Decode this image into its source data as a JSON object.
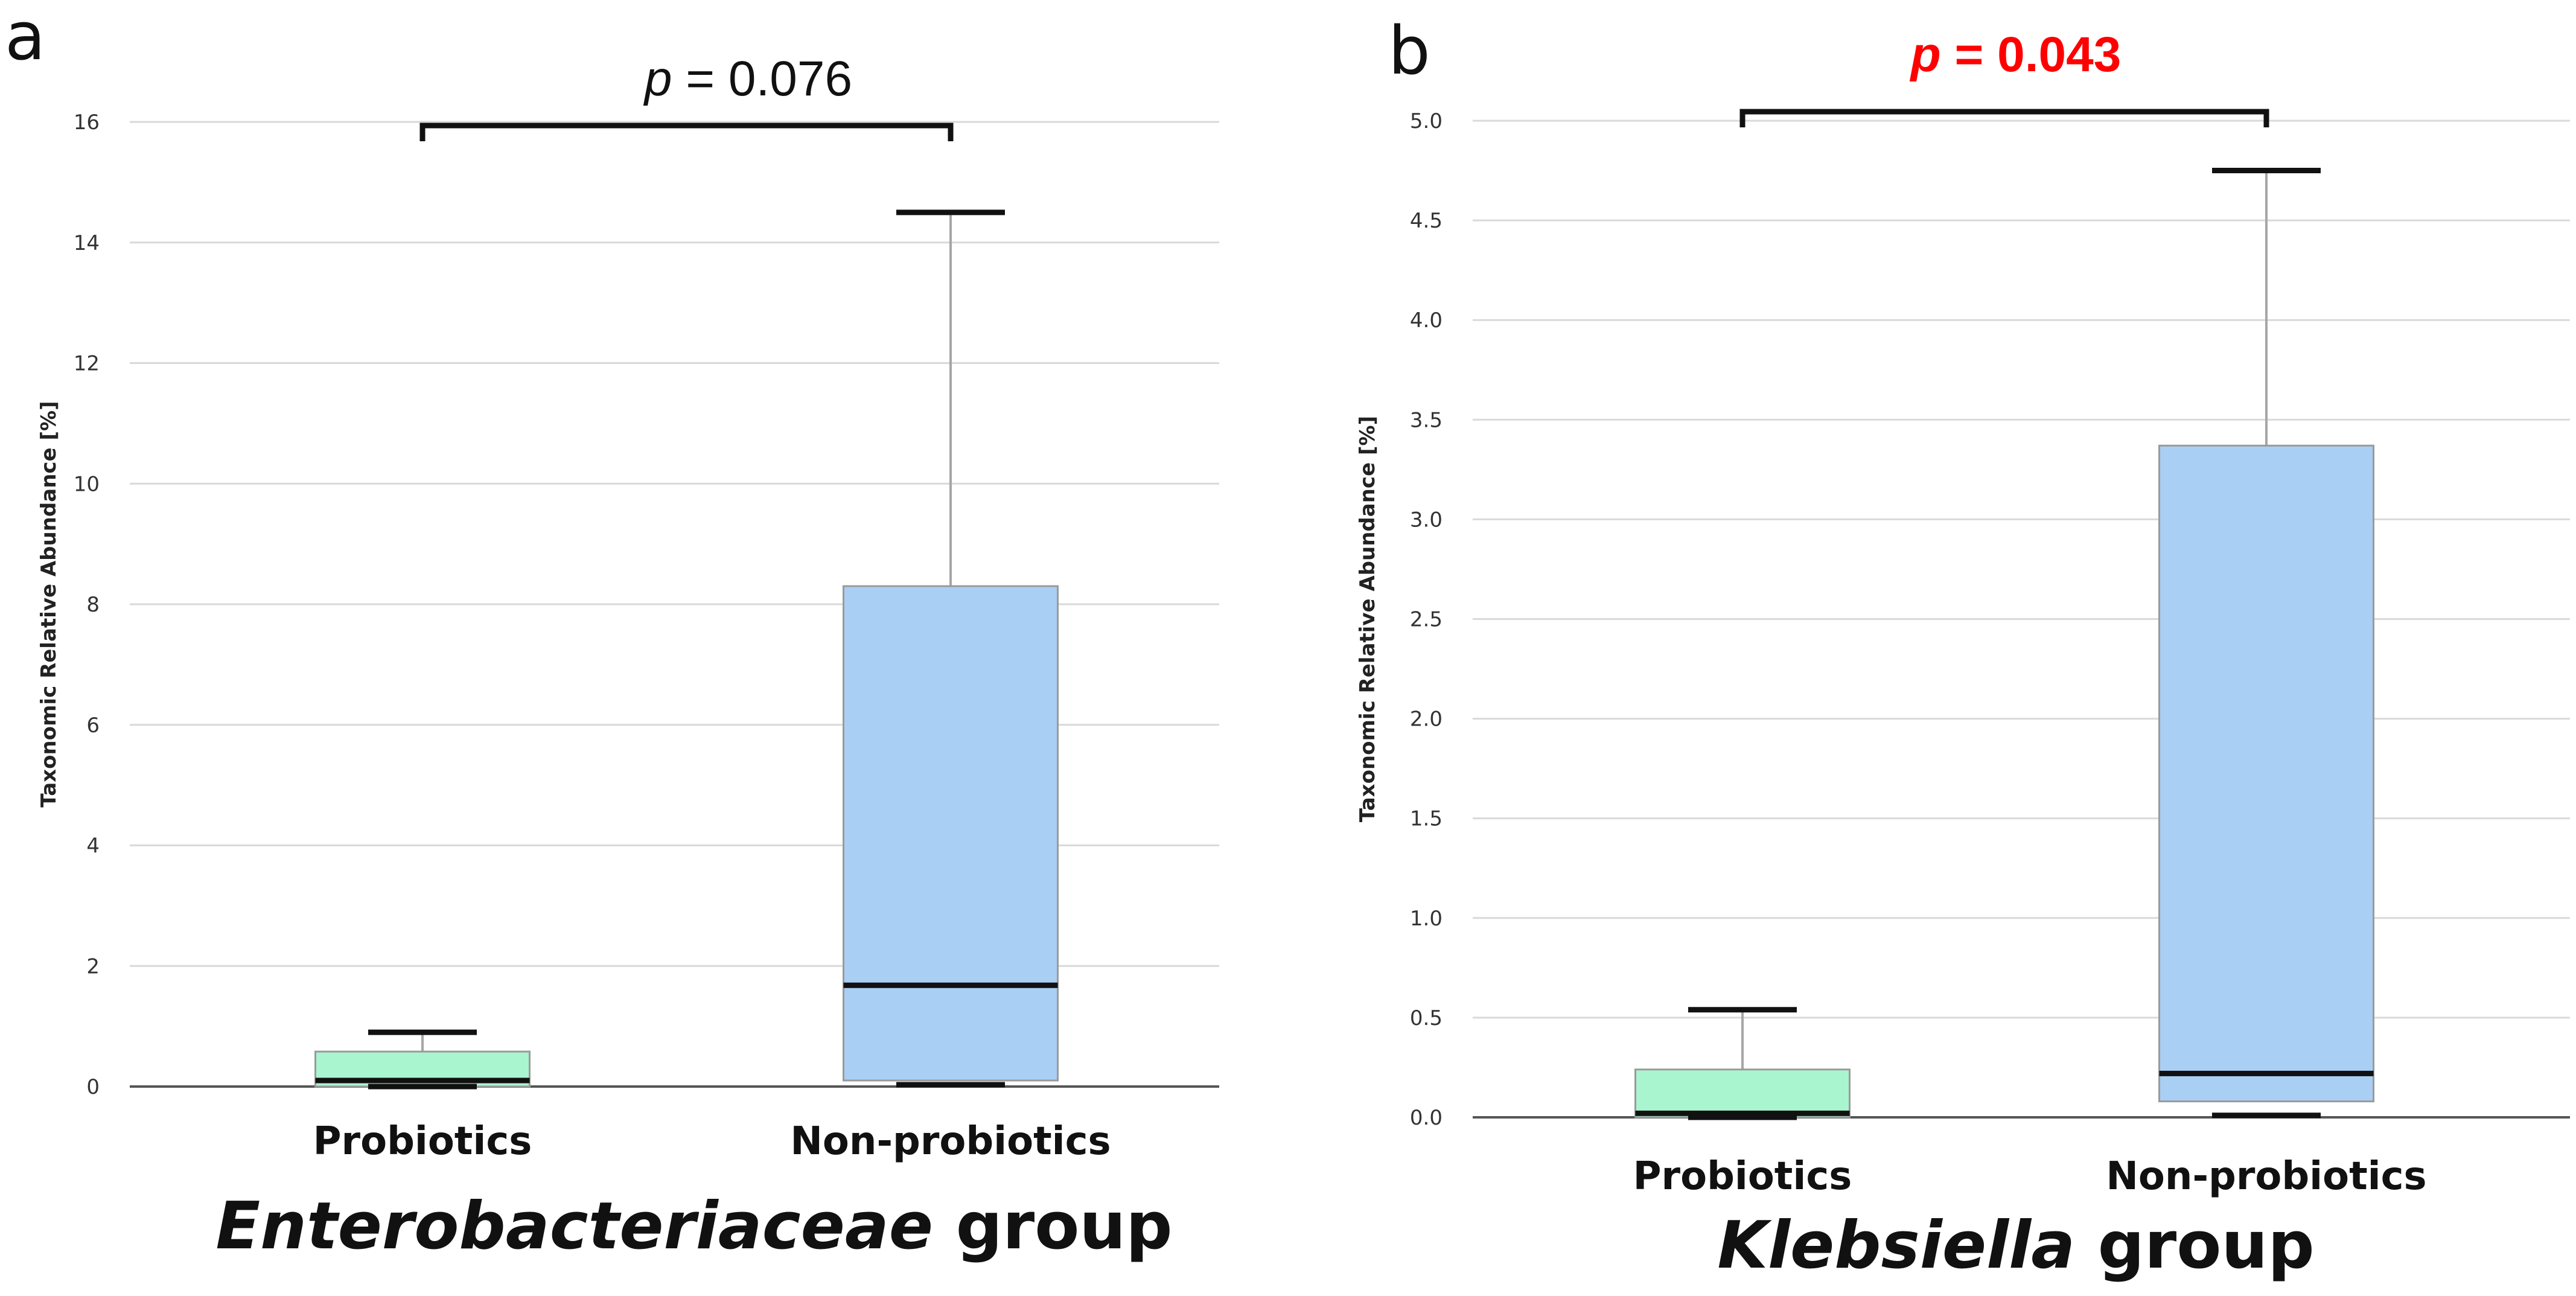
{
  "chart_data": [
    {
      "type": "box",
      "panel_label": "a",
      "ylabel": "Taxonomic Relative Abundance [%]",
      "ylim": [
        0,
        16
      ],
      "yticks": [
        "0",
        "2",
        "4",
        "6",
        "8",
        "10",
        "12",
        "14",
        "16"
      ],
      "categories": [
        "Probiotics",
        "Non-probiotics"
      ],
      "boxes": [
        {
          "min": 0.0,
          "q1": 0.0,
          "median": 0.1,
          "q3": 0.58,
          "max": 0.9,
          "color": "#a9f5cf"
        },
        {
          "min": 0.03,
          "q1": 0.1,
          "median": 1.68,
          "q3": 8.3,
          "max": 14.5,
          "color": "#aacff5"
        }
      ],
      "group_label": {
        "italic": "Enterobacteriaceae",
        "rest": " group"
      },
      "pvalue": {
        "prefix": "p",
        "text": " = 0.076",
        "color": "#111111",
        "bold": false
      },
      "grid": true
    },
    {
      "type": "box",
      "panel_label": "b",
      "ylabel": "Taxonomic Relative Abundance [%]",
      "ylim": [
        0,
        5.0
      ],
      "yticks": [
        "0.0",
        "0.5",
        "1.0",
        "1.5",
        "2.0",
        "2.5",
        "3.0",
        "3.5",
        "4.0",
        "4.5",
        "5.0"
      ],
      "categories": [
        "Probiotics",
        "Non-probiotics"
      ],
      "boxes": [
        {
          "min": 0.0,
          "q1": 0.0,
          "median": 0.02,
          "q3": 0.24,
          "max": 0.54,
          "color": "#a9f5cf"
        },
        {
          "min": 0.01,
          "q1": 0.08,
          "median": 0.22,
          "q3": 3.37,
          "max": 4.75,
          "color": "#aacff5"
        }
      ],
      "group_label": {
        "italic": "Klebsiella",
        "rest": " group"
      },
      "pvalue": {
        "prefix": "p",
        "text": " = 0.043",
        "color": "#ff0000",
        "bold": true
      },
      "grid": true
    }
  ]
}
